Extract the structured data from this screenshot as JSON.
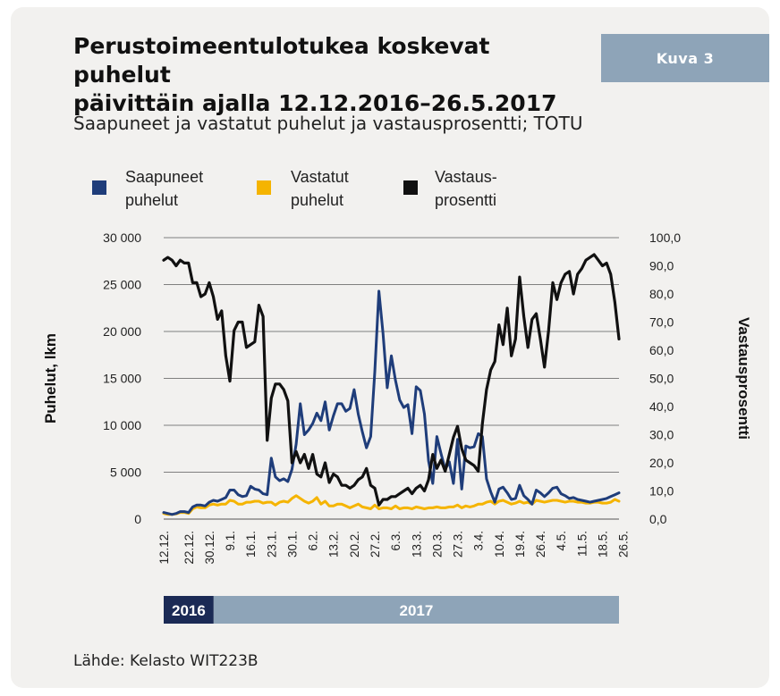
{
  "figure_label": "Kuva 3",
  "title_line1": "Perustoimeentulotukea koskevat puhelut",
  "title_line2": "päivittäin ajalla 12.12.2016–26.5.2017",
  "subtitle": "Saapuneet ja vastatut puhelut ja vastausprosentti; TOTU",
  "source": "Lähde: Kelasto WIT223B",
  "colors": {
    "arrived": "#1f3d7a",
    "answered": "#f5b400",
    "percent": "#111111",
    "year_2016": "#1b2a55",
    "year_2017": "#8ea4b8",
    "grid": "#7f7f7f"
  },
  "chart_data": {
    "type": "line",
    "ylabel": "Puhelut, lkm",
    "y2label": "Vastausprosentti",
    "ylim": [
      0,
      30000
    ],
    "y2lim": [
      0,
      100
    ],
    "yticks": [
      "0",
      "5 000",
      "10 000",
      "15 000",
      "20 000",
      "25 000",
      "30 000"
    ],
    "y2ticks": [
      "0,0",
      "10,0",
      "20,0",
      "30,0",
      "40,0",
      "50,0",
      "60,0",
      "70,0",
      "80,0",
      "90,0",
      "100,0"
    ],
    "xticks": [
      {
        "label": "12.12.",
        "index": 0
      },
      {
        "label": "22.12.",
        "index": 6
      },
      {
        "label": "30.12.",
        "index": 11
      },
      {
        "label": "9.1.",
        "index": 16
      },
      {
        "label": "16.1.",
        "index": 21
      },
      {
        "label": "23.1.",
        "index": 26
      },
      {
        "label": "30.1.",
        "index": 31
      },
      {
        "label": "6.2.",
        "index": 36
      },
      {
        "label": "13.2.",
        "index": 41
      },
      {
        "label": "20.2.",
        "index": 46
      },
      {
        "label": "27.2.",
        "index": 51
      },
      {
        "label": "6.3.",
        "index": 56
      },
      {
        "label": "13.3.",
        "index": 61
      },
      {
        "label": "20.3.",
        "index": 66
      },
      {
        "label": "27.3.",
        "index": 71
      },
      {
        "label": "3.4.",
        "index": 76
      },
      {
        "label": "10.4.",
        "index": 81
      },
      {
        "label": "19.4.",
        "index": 86
      },
      {
        "label": "26.4.",
        "index": 91
      },
      {
        "label": "4.5.",
        "index": 96
      },
      {
        "label": "11.5.",
        "index": 101
      },
      {
        "label": "18.5.",
        "index": 106
      },
      {
        "label": "26.5.",
        "index": 111
      }
    ],
    "year_bands": [
      {
        "label": "2016",
        "start_index": 0,
        "end_index": 12
      },
      {
        "label": "2017",
        "start_index": 12,
        "end_index": 111
      }
    ],
    "series": [
      {
        "name": "Saapuneet puhelut",
        "axis": "left",
        "values": [
          700,
          600,
          500,
          600,
          800,
          800,
          700,
          1300,
          1500,
          1500,
          1400,
          1800,
          2000,
          1900,
          2100,
          2300,
          3100,
          3100,
          2600,
          2400,
          2500,
          3500,
          3200,
          3100,
          2700,
          2600,
          6500,
          4500,
          4100,
          4300,
          4000,
          5300,
          8000,
          12300,
          9000,
          9500,
          10200,
          11300,
          10500,
          12500,
          9500,
          11000,
          12300,
          12300,
          11500,
          11800,
          13800,
          11200,
          9300,
          7600,
          8800,
          15700,
          24300,
          19800,
          14000,
          17400,
          14800,
          12700,
          11900,
          12200,
          9100,
          14100,
          13700,
          11200,
          6200,
          3800,
          8800,
          7000,
          5300,
          6100,
          3800,
          8500,
          3200,
          7800,
          7600,
          7700,
          9100,
          8800,
          4300,
          2900,
          1800,
          3200,
          3400,
          2800,
          2100,
          2200,
          3600,
          2500,
          2100,
          1600,
          3100,
          2800,
          2400,
          2800,
          3300,
          3400,
          2700,
          2500,
          2200,
          2300,
          2100,
          2000,
          1900,
          1800,
          1900,
          2000,
          2100,
          2200,
          2400,
          2600,
          2800
        ]
      },
      {
        "name": "Vastatut puhelut",
        "axis": "left",
        "values": [
          600,
          500,
          500,
          550,
          700,
          700,
          600,
          1100,
          1300,
          1200,
          1200,
          1500,
          1600,
          1500,
          1600,
          1600,
          2000,
          1900,
          1600,
          1600,
          1800,
          1800,
          1900,
          1900,
          1700,
          1800,
          1800,
          1500,
          1800,
          1900,
          1800,
          2200,
          2500,
          2200,
          1900,
          1700,
          1900,
          2300,
          1600,
          1900,
          1400,
          1400,
          1600,
          1600,
          1400,
          1200,
          1400,
          1600,
          1300,
          1200,
          1100,
          1500,
          1100,
          1200,
          1200,
          1100,
          1400,
          1100,
          1200,
          1200,
          1100,
          1300,
          1200,
          1100,
          1200,
          1200,
          1300,
          1200,
          1200,
          1300,
          1300,
          1500,
          1200,
          1400,
          1300,
          1400,
          1600,
          1600,
          1800,
          1900,
          1600,
          1900,
          2000,
          1800,
          1600,
          1700,
          1900,
          1700,
          1800,
          1600,
          2000,
          1900,
          1800,
          1900,
          2000,
          2000,
          1900,
          1800,
          1900,
          1900,
          1800,
          1800,
          1700,
          1700,
          1800,
          1800,
          1700,
          1700,
          1800,
          2100,
          1900
        ]
      },
      {
        "name": "Vastaus-prosentti",
        "axis": "right",
        "values": [
          92,
          93,
          92,
          90,
          92,
          91,
          91,
          84,
          84,
          79,
          80,
          84,
          79,
          71,
          74,
          58,
          49,
          67,
          70,
          70,
          61,
          62,
          63,
          76,
          72,
          28,
          43,
          48,
          48,
          46,
          42,
          20,
          24,
          20,
          23,
          18,
          23,
          16,
          15,
          20,
          13,
          16,
          15,
          12,
          12,
          11,
          12,
          14,
          15,
          18,
          12,
          11,
          5,
          7,
          7,
          8,
          8,
          9,
          10,
          11,
          9,
          11,
          12,
          10,
          14,
          23,
          18,
          21,
          17,
          23,
          29,
          33,
          25,
          21,
          20,
          19,
          17,
          34,
          46,
          53,
          56,
          69,
          62,
          75,
          58,
          64,
          86,
          72,
          61,
          71,
          73,
          64,
          54,
          67,
          84,
          78,
          84,
          87,
          88,
          80,
          87,
          89,
          92,
          93,
          94,
          92,
          90,
          91,
          87,
          77,
          64
        ]
      }
    ],
    "legend": {
      "placement": "top",
      "entries": [
        {
          "line1": "Saapuneet",
          "line2": "puhelut"
        },
        {
          "line1": "Vastatut",
          "line2": "puhelut"
        },
        {
          "line1": "Vastaus-",
          "line2": "prosentti"
        }
      ]
    }
  }
}
